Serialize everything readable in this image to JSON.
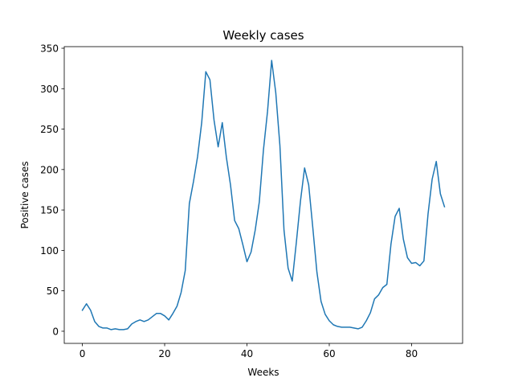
{
  "chart_data": {
    "type": "line",
    "title": "Weekly cases",
    "xlabel": "Weeks",
    "ylabel": "Positive cases",
    "xlim": [
      -4.4,
      92.4
    ],
    "ylim": [
      -15,
      352
    ],
    "xticks": [
      0,
      20,
      40,
      60,
      80
    ],
    "yticks": [
      0,
      50,
      100,
      150,
      200,
      250,
      300,
      350
    ],
    "grid": false,
    "colors": {
      "line": "#1f77b4",
      "axes": "#000000"
    },
    "series": [
      {
        "x": [
          0,
          1,
          2,
          3,
          4,
          5,
          6,
          7,
          8,
          9,
          10,
          11,
          12,
          13,
          14,
          15,
          16,
          17,
          18,
          19,
          20,
          21,
          22,
          23,
          24,
          25,
          26,
          27,
          28,
          29,
          30,
          31,
          32,
          33,
          34,
          35,
          36,
          37,
          38,
          39,
          40,
          41,
          42,
          43,
          44,
          45,
          46,
          47,
          48,
          49,
          50,
          51,
          52,
          53,
          54,
          55,
          56,
          57,
          58,
          59,
          60,
          61,
          62,
          63,
          64,
          65,
          66,
          67,
          68,
          69,
          70,
          71,
          72,
          73,
          74,
          75,
          76,
          77,
          78,
          79,
          80,
          81,
          82,
          83,
          84,
          85,
          86,
          87,
          88
        ],
        "y": [
          26,
          34,
          26,
          12,
          6,
          4,
          4,
          2,
          3,
          2,
          2,
          3,
          9,
          12,
          14,
          12,
          14,
          18,
          22,
          22,
          19,
          14,
          22,
          31,
          48,
          75,
          158,
          185,
          216,
          258,
          321,
          311,
          261,
          228,
          258,
          215,
          181,
          137,
          127,
          107,
          86,
          98,
          125,
          160,
          224,
          272,
          335,
          295,
          230,
          125,
          78,
          62,
          110,
          161,
          202,
          181,
          128,
          73,
          37,
          21,
          13,
          8,
          6,
          5,
          5,
          5,
          4,
          3,
          5,
          13,
          23,
          40,
          45,
          54,
          58,
          108,
          142,
          152,
          114,
          91,
          84,
          85,
          81,
          87,
          145,
          188,
          210,
          170,
          154
        ]
      }
    ]
  }
}
